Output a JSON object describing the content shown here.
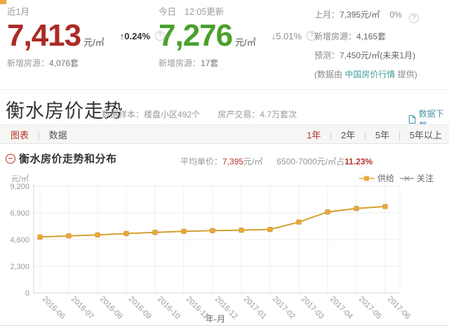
{
  "colors": {
    "price_up_red": "#ab2b24",
    "price_green": "#4aa02c",
    "accent_red": "#b5352c",
    "link_teal": "#44a09c",
    "download_blue": "#4596ab",
    "line_orange": "#d4a02f",
    "marker_orange": "#eaa93f",
    "legend_gray": "#9b9b9b"
  },
  "stats": {
    "recent": {
      "period": "近1月",
      "price": "7,413",
      "unit": "元/㎡",
      "arrow": "↑",
      "change": "0.24%",
      "help": "?",
      "listings_label": "新增房源：",
      "listings_value": "4,076套"
    },
    "today": {
      "period": "今日",
      "updated": "12:05更新",
      "price": "7,276",
      "unit": "元/㎡",
      "arrow": "↓",
      "change": "5.01%",
      "help": "?",
      "listings_label": "新增房源：",
      "listings_value": "17套"
    },
    "prev": {
      "row1_label": "上月：",
      "row1_value": "7,395元/㎡",
      "row1_change": "0%",
      "help": "?",
      "row2_label": "新增房源：",
      "row2_value": "4,165套",
      "row3_label": "预测：",
      "row3_value": "7,450元/㎡(未来1月)",
      "row4_prefix": "(数据由 ",
      "row4_link": "中国房价行情",
      "row4_suffix": " 提供)"
    }
  },
  "section": {
    "title": "衡水房价走势",
    "meta1_label": "数据样本：",
    "meta1_value": "楼盘小区492个",
    "meta2_label": "房产交易：",
    "meta2_value": "4.7万套次",
    "download_label": "数据下载"
  },
  "toolbar": {
    "tab_chart": "图表",
    "tab_data": "数据",
    "divider": "|",
    "ranges": [
      "1年",
      "2年",
      "5年",
      "5年以上"
    ]
  },
  "chart_header": {
    "title": "衡水房价走势和分布",
    "avg_label": "平均单价：",
    "avg_value": "7,395",
    "avg_unit": "元/㎡",
    "dist_text": "6500-7000元/㎡占",
    "dist_pct": "11.23%"
  },
  "chart_data": {
    "type": "line",
    "title": "衡水房价走势和分布",
    "xlabel": "年-月",
    "ylabel": "元/㎡",
    "x": [
      "2016-06",
      "2016-07",
      "2016-08",
      "2016-09",
      "2016-10",
      "2016-11",
      "2016-12",
      "2017-01",
      "2017-02",
      "2017-03",
      "2017-04",
      "2017-05",
      "2017-06"
    ],
    "series": [
      {
        "name": "供给",
        "color": "#eaa93f",
        "values": [
          4820,
          4920,
          5000,
          5120,
          5220,
          5310,
          5370,
          5410,
          5470,
          6110,
          6980,
          7280,
          7450
        ]
      },
      {
        "name": "关注",
        "color": "#9b9b9b",
        "values": []
      }
    ],
    "ylim": [
      0,
      9200
    ],
    "yticks": [
      0,
      2300,
      4600,
      6900,
      9200
    ],
    "grid": true,
    "legend_position": "top-right"
  }
}
